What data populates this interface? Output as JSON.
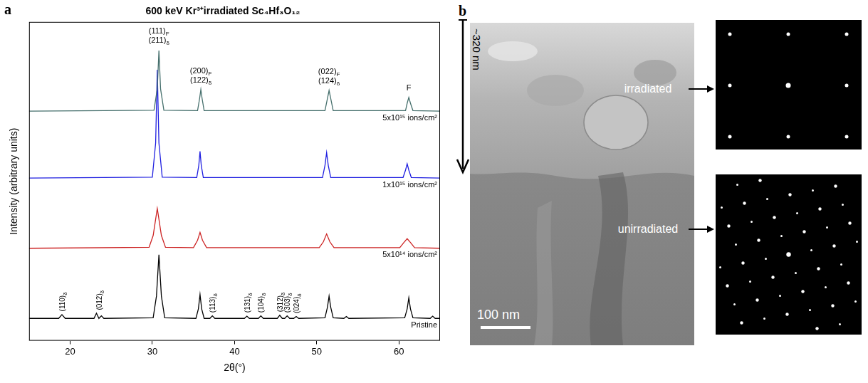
{
  "chart_data": {
    "type": "line",
    "panel_label": "a",
    "title": "600 keV Kr³⁺irradiated Sc₄Hf₃O₁₂",
    "x_label": "2θ(°)",
    "y_label": "Intensity (arbitrary units)",
    "xlim": [
      15,
      65
    ],
    "xticks": [
      20,
      30,
      40,
      50,
      60
    ],
    "ylim": [
      0,
      100
    ],
    "tick_labels": "x",
    "grid": false,
    "series": [
      {
        "name": "5x10¹⁵ ions/cm²",
        "color": "#456f6c",
        "x": [
          15,
          30.2,
          30.6,
          30.8,
          31.0,
          31.4,
          35.5,
          35.75,
          35.9,
          36.05,
          36.3,
          51.0,
          51.3,
          51.5,
          51.7,
          52.0,
          60.8,
          61.0,
          61.2,
          61.4,
          61.7,
          65
        ],
        "values": [
          72,
          72.3,
          79,
          91,
          79,
          72.3,
          72.2,
          76,
          78.8,
          76,
          72.2,
          72.2,
          76,
          78.5,
          76,
          72.2,
          72.2,
          74.5,
          76.3,
          74.5,
          72.2,
          72
        ]
      },
      {
        "name": "1x10¹⁵ ions/cm²",
        "color": "#1f1fe0",
        "x": [
          15,
          30.0,
          30.4,
          30.6,
          30.8,
          31.2,
          35.4,
          35.65,
          35.8,
          35.95,
          36.2,
          50.7,
          51.0,
          51.2,
          51.4,
          51.7,
          60.5,
          60.8,
          61.0,
          61.2,
          61.5,
          65
        ],
        "values": [
          51,
          51.3,
          62,
          85,
          62,
          51.3,
          51.2,
          55,
          59.4,
          55,
          51.2,
          51.2,
          55,
          59,
          55,
          51.2,
          51.2,
          53.5,
          55.5,
          53.5,
          51.2,
          51
        ]
      },
      {
        "name": "5x10¹⁴ ions/cm²",
        "color": "#cc2222",
        "x": [
          15,
          29.6,
          30.1,
          30.6,
          31.1,
          31.6,
          35.0,
          35.5,
          35.8,
          36.1,
          36.6,
          50.3,
          50.8,
          51.2,
          51.6,
          52.1,
          60.1,
          60.6,
          61.0,
          61.4,
          61.9,
          65
        ],
        "values": [
          29,
          29.3,
          33,
          41.5,
          33,
          29.3,
          29.2,
          31.5,
          34,
          31.5,
          29.2,
          29.2,
          31,
          33.5,
          31,
          29.2,
          29.2,
          30.8,
          32,
          30.8,
          29.2,
          29
        ]
      },
      {
        "name": "Pristine",
        "color": "#000000",
        "x": [
          15,
          18.6,
          19.0,
          19.4,
          22.9,
          23.2,
          23.5,
          23.8,
          24.1,
          30.1,
          30.5,
          30.8,
          31.1,
          31.5,
          35.3,
          35.6,
          35.8,
          36.0,
          36.3,
          37.0,
          37.3,
          37.6,
          41.2,
          41.5,
          41.8,
          42.9,
          43.2,
          43.5,
          45.2,
          45.5,
          45.8,
          46.1,
          46.4,
          46.7,
          47.2,
          47.5,
          47.8,
          51.0,
          51.3,
          51.5,
          51.7,
          52.0,
          53.3,
          53.6,
          53.9,
          60.7,
          61.0,
          61.2,
          61.4,
          61.7,
          63.8,
          64.1,
          64.4,
          65
        ],
        "values": [
          7,
          7,
          8.2,
          7,
          7,
          8.6,
          7,
          7.8,
          7,
          7.2,
          14,
          27,
          14,
          7.2,
          7,
          10,
          14.5,
          10,
          7,
          7,
          7.8,
          7,
          7,
          7.7,
          7,
          7,
          7.8,
          7,
          7,
          8,
          7,
          7,
          7.8,
          7,
          7,
          7.6,
          7,
          7.2,
          10.5,
          14,
          10.5,
          7.2,
          7,
          7.6,
          7,
          7.2,
          10,
          13.5,
          10,
          7.2,
          7,
          7.7,
          7,
          7
        ]
      }
    ],
    "peak_labels": [
      {
        "x": 30.8,
        "y": 93.5,
        "lines": [
          [
            "(111)",
            "F"
          ],
          [
            "(211)",
            "δ"
          ]
        ]
      },
      {
        "x": 35.9,
        "y": 81,
        "lines": [
          [
            "(200)",
            "F"
          ],
          [
            "(122)",
            "δ"
          ]
        ]
      },
      {
        "x": 51.5,
        "y": 80.8,
        "lines": [
          [
            "(022)",
            "F"
          ],
          [
            "(124)",
            "δ"
          ]
        ]
      },
      {
        "x": 61.2,
        "y": 78.5,
        "lines": [
          "F"
        ]
      }
    ],
    "pristine_peak_labels": [
      {
        "x": 19.0,
        "y": 9.2,
        "lines": [
          [
            "(110)",
            "δ"
          ]
        ]
      },
      {
        "x": 23.5,
        "y": 9.6,
        "lines": [
          [
            "(012)",
            "δ"
          ]
        ]
      },
      {
        "x": 37.3,
        "y": 8.8,
        "lines": [
          [
            "(113)",
            "δ"
          ]
        ]
      },
      {
        "x": 41.5,
        "y": 8.8,
        "lines": [
          [
            "(131)",
            "δ"
          ]
        ]
      },
      {
        "x": 43.2,
        "y": 8.8,
        "lines": [
          [
            "(104)",
            "δ"
          ]
        ]
      },
      {
        "x": 45.5,
        "y": 9.0,
        "lines": [
          [
            "(312)",
            "δ"
          ]
        ]
      },
      {
        "x": 46.4,
        "y": 8.8,
        "lines": [
          [
            "(303)",
            "δ"
          ]
        ]
      },
      {
        "x": 47.5,
        "y": 8.6,
        "lines": [
          [
            "(024)",
            "δ"
          ]
        ]
      }
    ]
  },
  "micrograph": {
    "panel_label": "b",
    "depth": "~320 nm",
    "regions": [
      {
        "label": "irradiated"
      },
      {
        "label": "unirradiated"
      }
    ],
    "scale_bar": "100 nm"
  }
}
